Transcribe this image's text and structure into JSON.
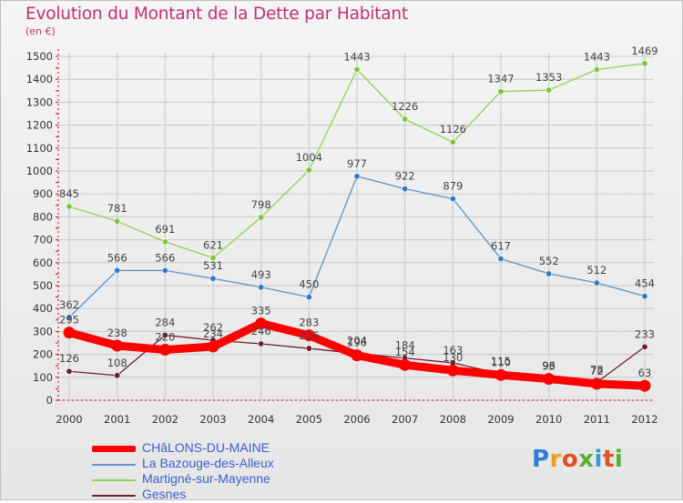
{
  "title": "Evolution du Montant de la Dette par Habitant",
  "unit_label": "(en €)",
  "logo_text": "Proxiti",
  "colors": {
    "title": "#c0306e",
    "axis": "#d40000",
    "grid": "#c8c8c8",
    "legend_text": "#3a5fcd"
  },
  "chart_data": {
    "type": "line",
    "title": "Evolution du Montant de la Dette par Habitant",
    "ylabel": "(en €)",
    "xlabel": "",
    "categories": [
      "2000",
      "2001",
      "2002",
      "2003",
      "2004",
      "2005",
      "2006",
      "2007",
      "2008",
      "2009",
      "2010",
      "2011",
      "2012"
    ],
    "ylim": [
      0,
      1500
    ],
    "yticks": [
      0,
      100,
      200,
      300,
      400,
      500,
      600,
      700,
      800,
      900,
      1000,
      1100,
      1200,
      1300,
      1400,
      1500
    ],
    "grid": true,
    "legend_position": "bottom-left",
    "series": [
      {
        "name": "CHâLONS-DU-MAINE",
        "color": "#ff0000",
        "point_color": "#ff0000",
        "values": [
          295,
          238,
          220,
          234,
          335,
          283,
          196,
          154,
          130,
          110,
          93,
          72,
          63
        ]
      },
      {
        "name": "La Bazouge-des-Alleux",
        "color": "#5a94c8",
        "point_color": "#2e7bc4",
        "values": [
          362,
          566,
          566,
          531,
          493,
          450,
          977,
          922,
          879,
          617,
          552,
          512,
          454
        ]
      },
      {
        "name": "Martigné-sur-Mayenne",
        "color": "#8fd24e",
        "point_color": "#7cc83a",
        "values": [
          845,
          781,
          691,
          621,
          798,
          1004,
          1443,
          1226,
          1126,
          1347,
          1353,
          1443,
          1469
        ]
      },
      {
        "name": "Gesnes",
        "color": "#6b1f2a",
        "point_color": "#6b1f2a",
        "values": [
          126,
          108,
          284,
          262,
          246,
          226,
          204,
          184,
          163,
          115,
          96,
          78,
          233
        ]
      }
    ]
  }
}
